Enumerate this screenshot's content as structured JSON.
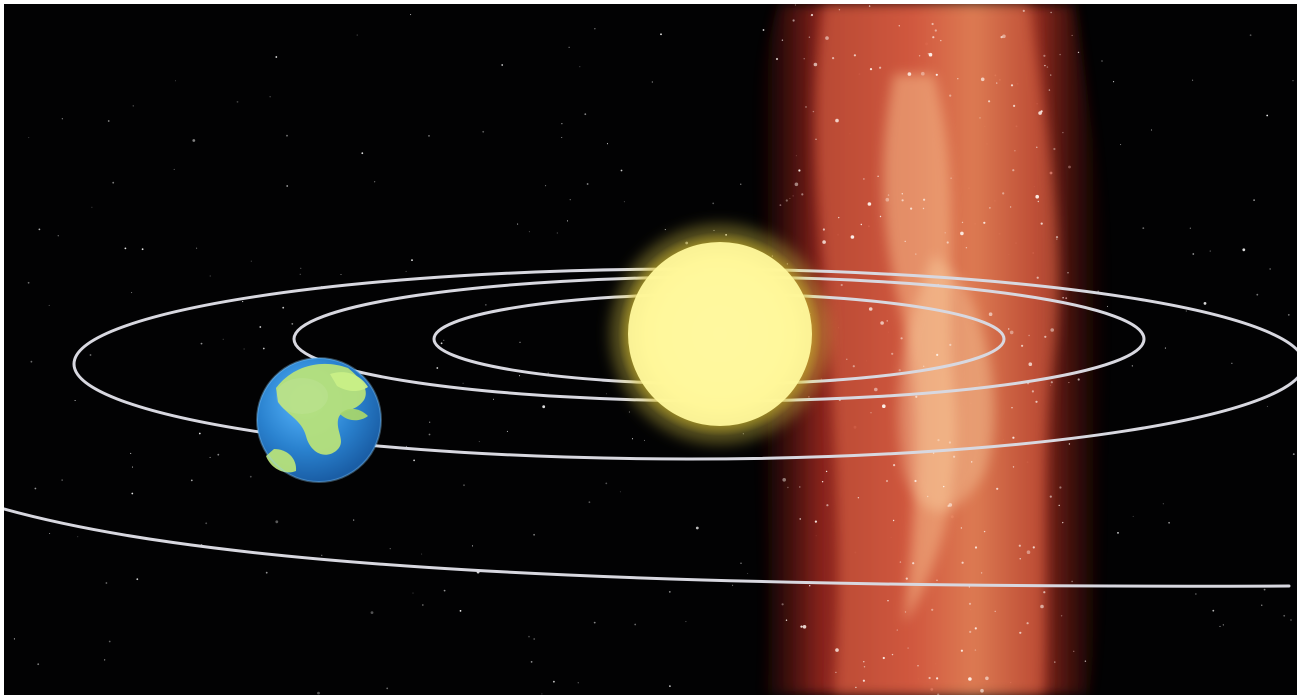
{
  "scene": {
    "description_free": true,
    "objects": {
      "background": "starfield",
      "band": "milky-way",
      "sun": "sun",
      "earth": "earth",
      "orbits": [
        "orbit-inner",
        "orbit-middle",
        "orbit-outer",
        "orbit-outermost"
      ]
    },
    "colors": {
      "space": "#020203",
      "sun_core": "#ffff9a",
      "sun_glow": "#f7e64a",
      "orbit": "#d8d8e0",
      "earth_ocean": "#2d86d2",
      "earth_land": "#b7e27a",
      "nebula_red": "#c83a2c",
      "nebula_bright": "#f7c27a"
    }
  }
}
